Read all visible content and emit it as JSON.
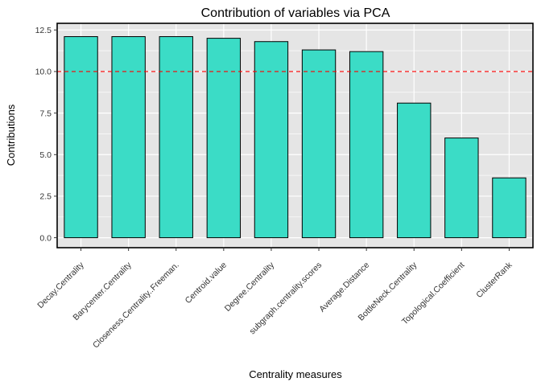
{
  "chart_data": {
    "type": "bar",
    "title": "Contribution of variables via PCA",
    "xlabel": "Centrality measures",
    "ylabel": "Contributions",
    "categories": [
      "Decay.Centrality",
      "Barycenter.Centrality",
      "Closeness.Centrality..Freeman.",
      "Centroid.value",
      "Degree.Centrality",
      "subgraph.centrality.scores",
      "Average.Distance",
      "BottleNeck.Centrality",
      "Topological.Coefficient",
      "ClusterRank"
    ],
    "values": [
      12.1,
      12.1,
      12.1,
      12.0,
      11.8,
      11.3,
      11.2,
      8.1,
      6.0,
      3.6
    ],
    "yticks": [
      "0.0",
      "2.5",
      "5.0",
      "7.5",
      "10.0",
      "12.5"
    ],
    "ylim": [
      -0.6,
      12.9
    ],
    "reference_line": 10.0,
    "colors": {
      "bar_fill": "#3BDCC6",
      "bar_stroke": "#000000",
      "reference_line": "#FF0000",
      "panel_bg": "#E5E5E5",
      "grid": "#FFFFFF"
    },
    "grid": true
  }
}
